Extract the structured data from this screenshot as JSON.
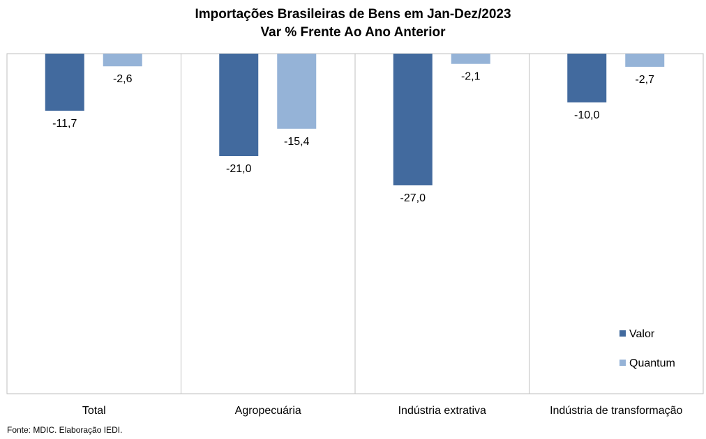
{
  "chart_data": {
    "type": "bar",
    "title": "Importações Brasileiras de Bens em Jan-Dez/2023",
    "subtitle": "Var % Frente Ao Ano Anterior",
    "categories": [
      "Total",
      "Agropecuária",
      "Indústria extrativa",
      "Indústria de transformação"
    ],
    "series": [
      {
        "name": "Valor",
        "values": [
          -11.7,
          -21.0,
          -27.0,
          -10.0
        ],
        "labels": [
          "-11,7",
          "-21,0",
          "-27,0",
          "-10,0"
        ],
        "color": "#426A9E"
      },
      {
        "name": "Quantum",
        "values": [
          -2.6,
          -15.4,
          -2.1,
          -2.7
        ],
        "labels": [
          "-2,6",
          "-15,4",
          "-2,1",
          "-2,7"
        ],
        "color": "#95B3D7"
      }
    ],
    "ylim": [
      -30,
      0
    ],
    "grid": false,
    "legend_position": "bottom-right"
  },
  "footnote": "Fonte: MDIC. Elaboração IEDI."
}
